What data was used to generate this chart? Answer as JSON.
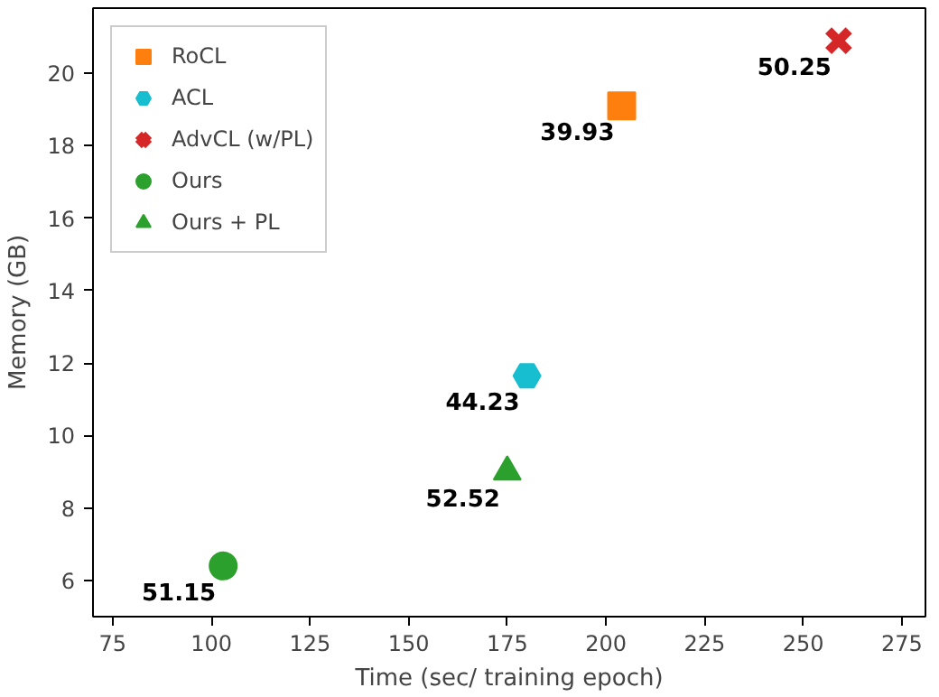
{
  "chart_data": {
    "type": "scatter",
    "xlabel": "Time (sec/ training epoch)",
    "ylabel": "Memory (GB)",
    "xlim": [
      70,
      281
    ],
    "ylim": [
      5.0,
      21.8
    ],
    "xticks": [
      75,
      100,
      125,
      150,
      175,
      200,
      225,
      250,
      275
    ],
    "yticks": [
      6,
      8,
      10,
      12,
      14,
      16,
      18,
      20
    ],
    "grid": false,
    "legend": "top left",
    "annotations": [
      {
        "text": "39.93",
        "x": 204,
        "y": 19.1
      },
      {
        "text": "44.23",
        "x": 180,
        "y": 11.65
      },
      {
        "text": "50.25",
        "x": 259,
        "y": 20.9
      },
      {
        "text": "51.15",
        "x": 103,
        "y": 6.4
      },
      {
        "text": "52.52",
        "x": 175,
        "y": 9.0
      }
    ],
    "series": [
      {
        "name": "RoCL",
        "color": "#ff7f0e",
        "marker": "square",
        "x": [
          204
        ],
        "values": [
          19.1
        ]
      },
      {
        "name": "ACL",
        "color": "#17becf",
        "x": [
          180
        ],
        "values": [
          11.65
        ]
      },
      {
        "name": "AdvCL (w/PL)",
        "color": "#d62728",
        "marker": "cross",
        "x": [
          259
        ],
        "values": [
          20.9
        ]
      },
      {
        "name": "Ours",
        "color": "#2ca02c",
        "marker": "circle",
        "x": [
          103
        ],
        "values": [
          6.4
        ]
      },
      {
        "name": "Ours + PL",
        "color": "#2ca02c",
        "marker": "triangle",
        "x": [
          175
        ],
        "values": [
          9.0
        ]
      }
    ]
  }
}
